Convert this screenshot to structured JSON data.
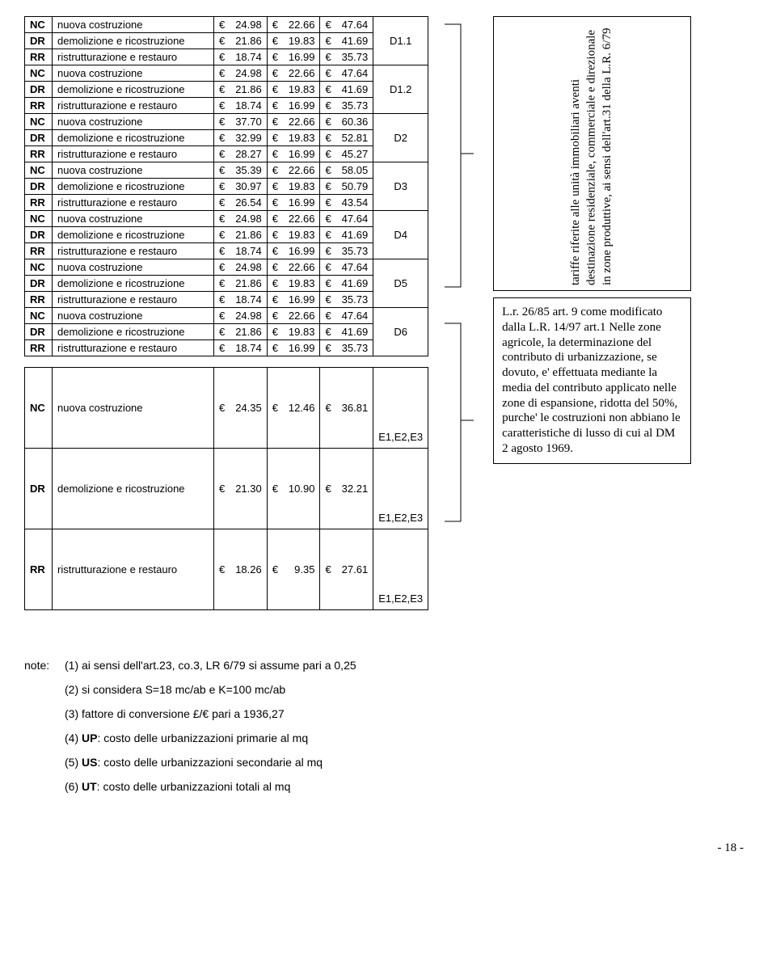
{
  "table": {
    "rows": [
      {
        "code": "NC",
        "desc": "nuova costruzione",
        "v1": "24.98",
        "v2": "22.66",
        "v3": "47.64",
        "tag": "",
        "rowspan": 0
      },
      {
        "code": "DR",
        "desc": "demolizione e ricostruzione",
        "v1": "21.86",
        "v2": "19.83",
        "v3": "41.69",
        "tag": "D1.1",
        "rowspan": 1
      },
      {
        "code": "RR",
        "desc": "ristrutturazione e restauro",
        "v1": "18.74",
        "v2": "16.99",
        "v3": "35.73",
        "tag": "",
        "rowspan": 0
      },
      {
        "code": "NC",
        "desc": "nuova costruzione",
        "v1": "24.98",
        "v2": "22.66",
        "v3": "47.64",
        "tag": "",
        "rowspan": 0
      },
      {
        "code": "DR",
        "desc": "demolizione e ricostruzione",
        "v1": "21.86",
        "v2": "19.83",
        "v3": "41.69",
        "tag": "D1.2",
        "rowspan": 1
      },
      {
        "code": "RR",
        "desc": "ristrutturazione e restauro",
        "v1": "18.74",
        "v2": "16.99",
        "v3": "35.73",
        "tag": "",
        "rowspan": 0
      },
      {
        "code": "NC",
        "desc": "nuova costruzione",
        "v1": "37.70",
        "v2": "22.66",
        "v3": "60.36",
        "tag": "",
        "rowspan": 0
      },
      {
        "code": "DR",
        "desc": "demolizione e ricostruzione",
        "v1": "32.99",
        "v2": "19.83",
        "v3": "52.81",
        "tag": "D2",
        "rowspan": 1
      },
      {
        "code": "RR",
        "desc": "ristrutturazione e restauro",
        "v1": "28.27",
        "v2": "16.99",
        "v3": "45.27",
        "tag": "",
        "rowspan": 0
      },
      {
        "code": "NC",
        "desc": "nuova costruzione",
        "v1": "35.39",
        "v2": "22.66",
        "v3": "58.05",
        "tag": "",
        "rowspan": 0
      },
      {
        "code": "DR",
        "desc": "demolizione e ricostruzione",
        "v1": "30.97",
        "v2": "19.83",
        "v3": "50.79",
        "tag": "D3",
        "rowspan": 1
      },
      {
        "code": "RR",
        "desc": "ristrutturazione e restauro",
        "v1": "26.54",
        "v2": "16.99",
        "v3": "43.54",
        "tag": "",
        "rowspan": 0
      },
      {
        "code": "NC",
        "desc": "nuova costruzione",
        "v1": "24.98",
        "v2": "22.66",
        "v3": "47.64",
        "tag": "",
        "rowspan": 0
      },
      {
        "code": "DR",
        "desc": "demolizione e ricostruzione",
        "v1": "21.86",
        "v2": "19.83",
        "v3": "41.69",
        "tag": "D4",
        "rowspan": 1
      },
      {
        "code": "RR",
        "desc": "ristrutturazione e restauro",
        "v1": "18.74",
        "v2": "16.99",
        "v3": "35.73",
        "tag": "",
        "rowspan": 0
      },
      {
        "code": "NC",
        "desc": "nuova costruzione",
        "v1": "24.98",
        "v2": "22.66",
        "v3": "47.64",
        "tag": "",
        "rowspan": 0
      },
      {
        "code": "DR",
        "desc": "demolizione e ricostruzione",
        "v1": "21.86",
        "v2": "19.83",
        "v3": "41.69",
        "tag": "D5",
        "rowspan": 1
      },
      {
        "code": "RR",
        "desc": "ristrutturazione e restauro",
        "v1": "18.74",
        "v2": "16.99",
        "v3": "35.73",
        "tag": "",
        "rowspan": 0
      },
      {
        "code": "NC",
        "desc": "nuova costruzione",
        "v1": "24.98",
        "v2": "22.66",
        "v3": "47.64",
        "tag": "",
        "rowspan": 0
      },
      {
        "code": "DR",
        "desc": "demolizione e ricostruzione",
        "v1": "21.86",
        "v2": "19.83",
        "v3": "41.69",
        "tag": "D6",
        "rowspan": 1
      },
      {
        "code": "RR",
        "desc": "ristrutturazione e restauro",
        "v1": "18.74",
        "v2": "16.99",
        "v3": "35.73",
        "tag": "",
        "rowspan": 0
      }
    ],
    "bigrows": [
      {
        "code": "NC",
        "desc": "nuova costruzione",
        "v1": "24.35",
        "v2": "12.46",
        "v3": "36.81",
        "tag": "E1,E2,E3"
      },
      {
        "code": "DR",
        "desc": "demolizione e ricostruzione",
        "v1": "21.30",
        "v2": "10.90",
        "v3": "32.21",
        "tag": "E1,E2,E3"
      },
      {
        "code": "RR",
        "desc": "ristrutturazione e restauro",
        "v1": "18.26",
        "v2": "9.35",
        "v3": "27.61",
        "tag": "E1,E2,E3"
      }
    ]
  },
  "vertical_text": "tariffe riferite alle unità immobiliari aventi destinazione residenziale, commerciale e direzionale in zone produttive, ai sensi dell'art.31 della L.R. 6/79",
  "side_note": "L.r. 26/85 art. 9 come modificato dalla L.R. 14/97 art.1 Nelle zone agricole, la determinazione del contributo di urbanizzazione, se dovuto, e' effettuata mediante la media del contributo applicato nelle zone di espansione, ridotta del 50%, purche' le costruzioni non abbiano le caratteristiche di lusso di cui al DM 2 agosto 1969.",
  "notes": {
    "label": "note:",
    "items": [
      "(1) ai sensi dell'art.23, co.3, LR 6/79 si assume pari a 0,25",
      "(2) si considera S=18 mc/ab e K=100 mc/ab",
      "(3) fattore di conversione £/€ pari a 1936,27",
      "(4) <b>UP</b>: costo delle urbanizzazioni primarie al mq",
      "(5) <b>US</b>: costo delle urbanizzazioni secondarie al mq",
      "(6) <b>UT</b>: costo delle urbanizzazioni totali al mq"
    ]
  },
  "pagenum": "- 18 -"
}
